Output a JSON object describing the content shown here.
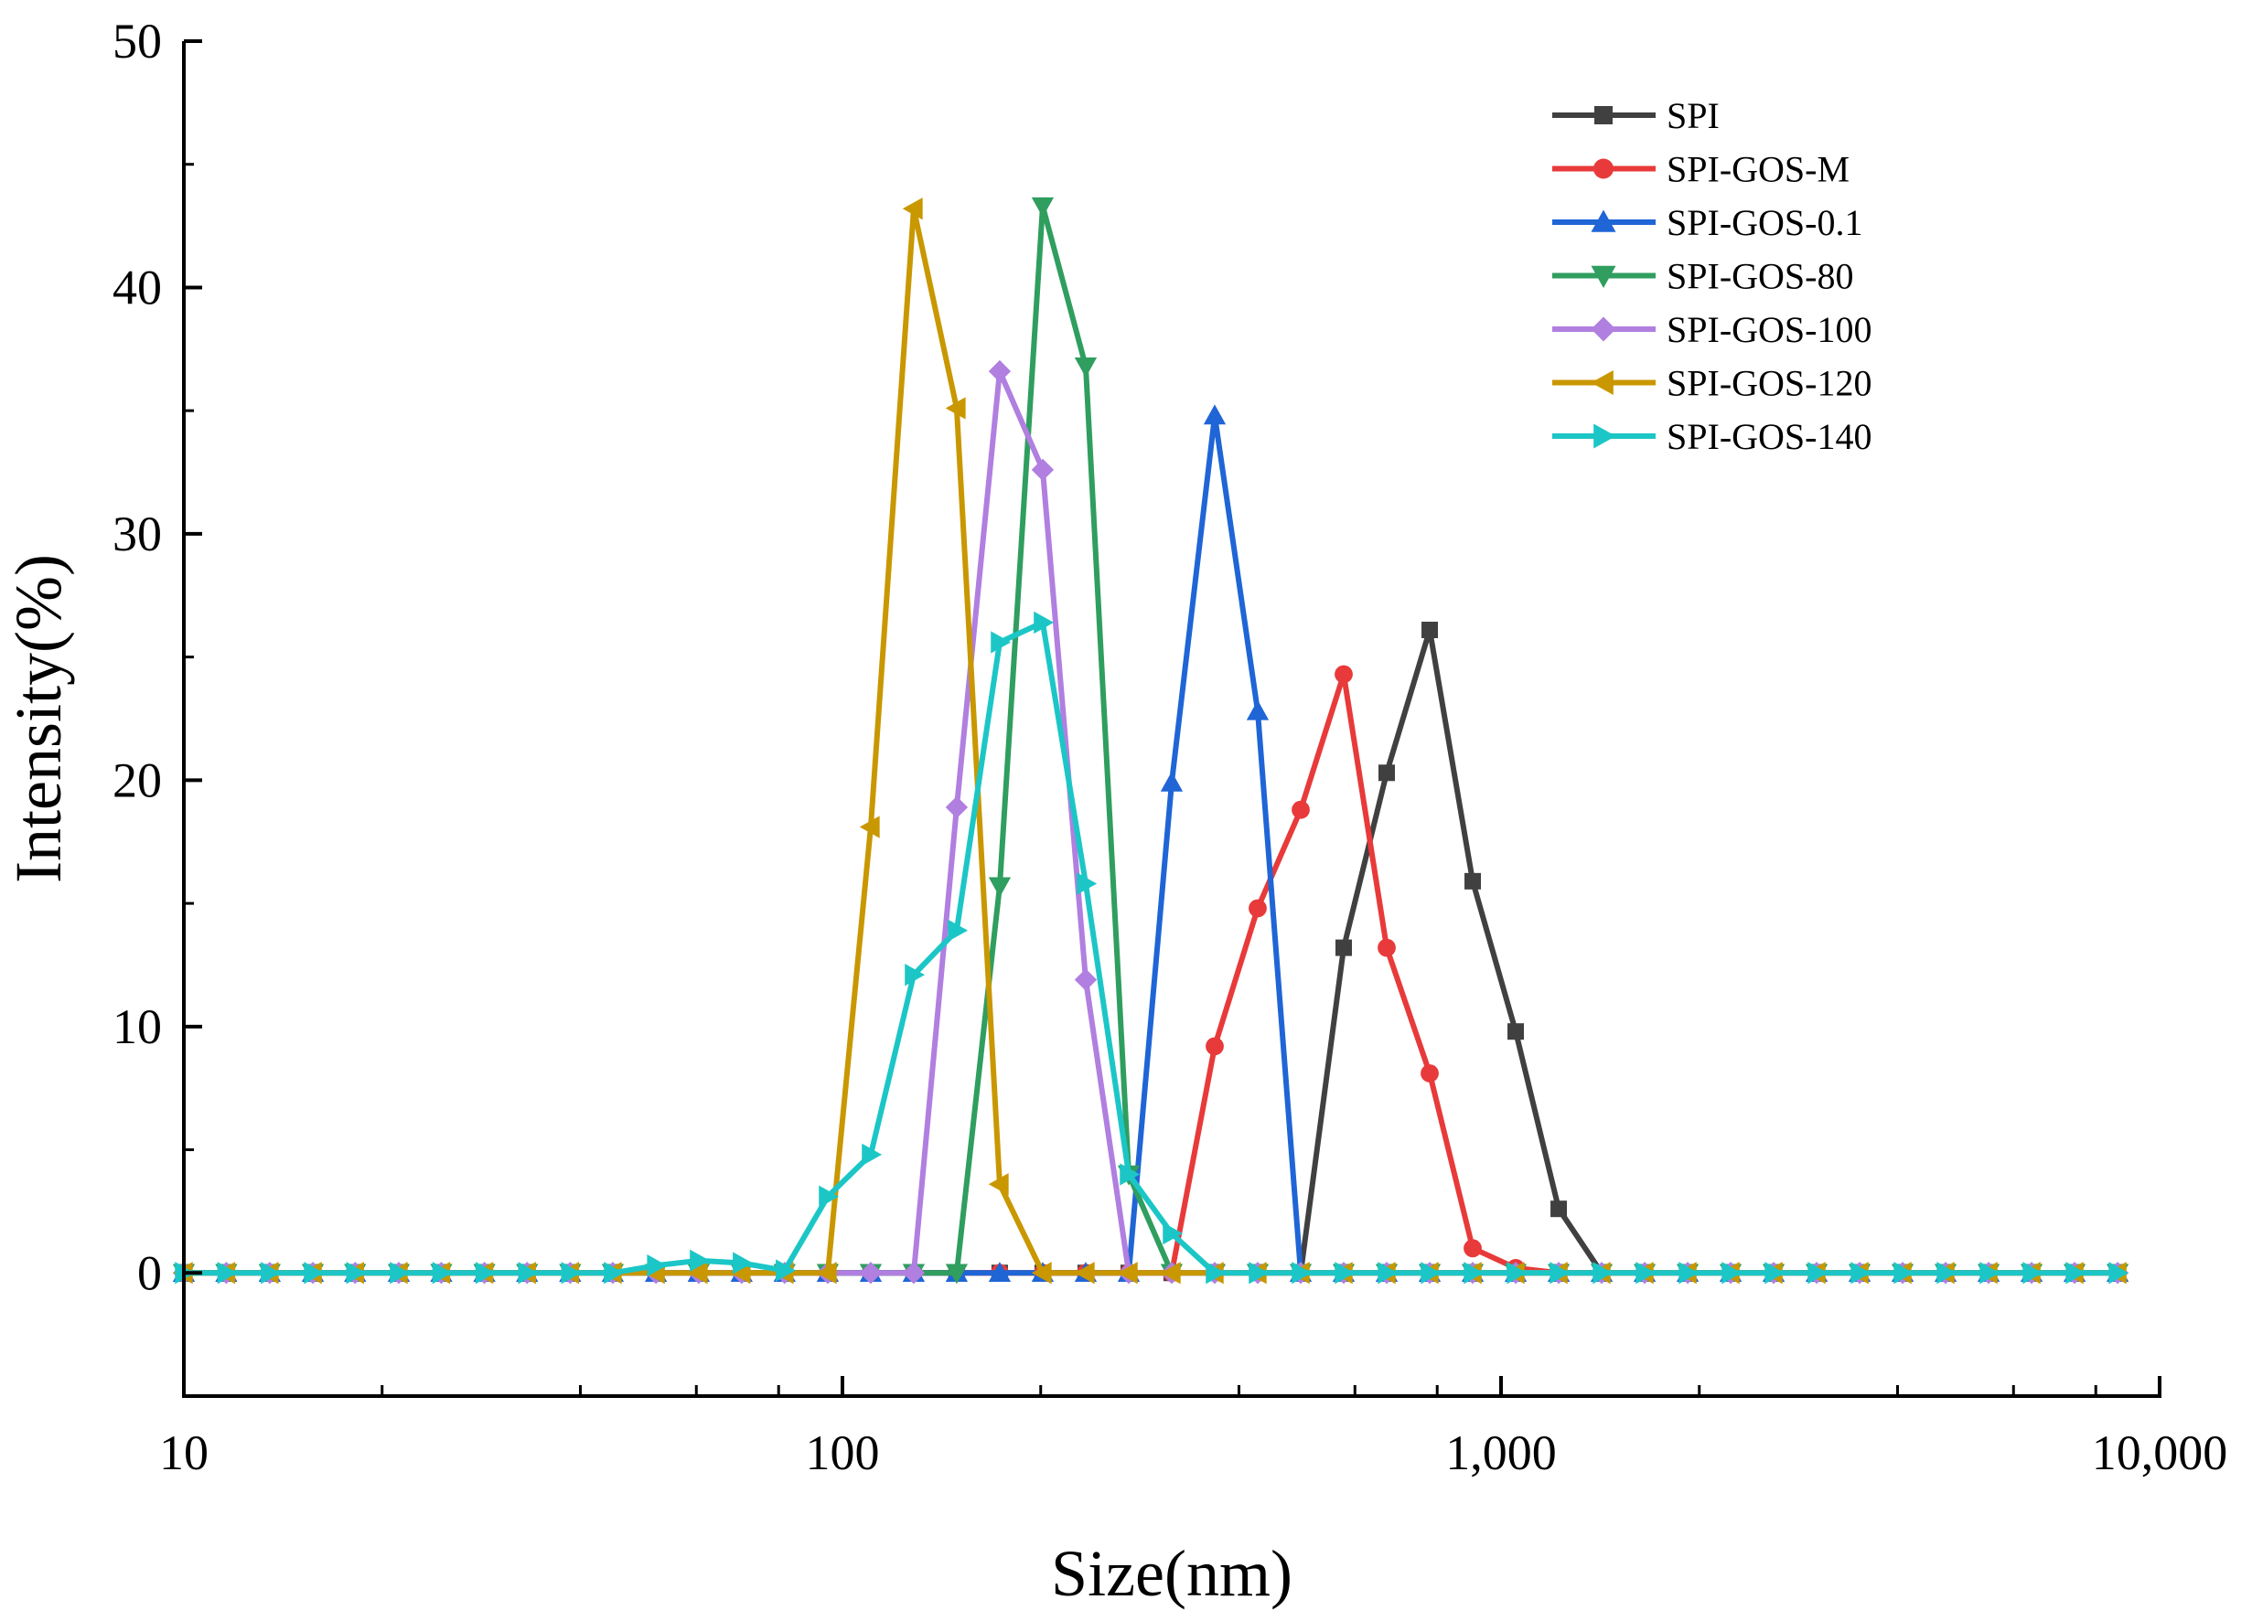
{
  "chart_data": {
    "type": "line",
    "title": "",
    "xlabel": "Size(nm)",
    "ylabel": "Intensity(%)",
    "x_scale": "log",
    "xlim": [
      10,
      10000
    ],
    "ylim": [
      -5,
      50
    ],
    "x_ticks": [
      10,
      100,
      1000,
      10000
    ],
    "x_tick_labels": [
      "10",
      "100",
      "1,000",
      "10,000"
    ],
    "y_ticks": [
      0,
      10,
      20,
      30,
      40,
      50
    ],
    "y_tick_labels": [
      "0",
      "10",
      "20",
      "30",
      "40",
      "50"
    ],
    "legend_position": "top-right",
    "x": [
      10,
      11.6,
      13.5,
      15.7,
      18.2,
      21.2,
      24.6,
      28.6,
      33.2,
      38.6,
      44.8,
      52.1,
      60.5,
      70.3,
      81.7,
      95,
      110.4,
      128.3,
      149.1,
      173.3,
      201.4,
      234.1,
      272.1,
      316.2,
      367.5,
      427.1,
      496.4,
      576.9,
      670.5,
      779.3,
      905.7,
      1052.6,
      1223.4,
      1421.8,
      1652.4,
      1920.4,
      2231.9,
      2593.9,
      3014.6,
      3503.6,
      4071.9,
      4732.4,
      5500,
      6392.1,
      7429,
      8633.9
    ],
    "series": [
      {
        "name": "SPI",
        "color": "#404040",
        "marker": "square",
        "values": [
          0,
          0,
          0,
          0,
          0,
          0,
          0,
          0,
          0,
          0,
          0,
          0,
          0,
          0,
          0,
          0,
          0,
          0,
          0,
          0,
          0,
          0,
          0,
          0,
          0,
          0,
          0,
          13.2,
          20.3,
          26.1,
          15.9,
          9.8,
          2.6,
          0,
          0,
          0,
          0,
          0,
          0,
          0,
          0,
          0,
          0,
          0,
          0,
          0
        ]
      },
      {
        "name": "SPI-GOS-M",
        "color": "#e83a3a",
        "marker": "circle",
        "values": [
          0,
          0,
          0,
          0,
          0,
          0,
          0,
          0,
          0,
          0,
          0,
          0,
          0,
          0,
          0,
          0,
          0,
          0,
          0,
          0,
          0,
          0,
          0,
          0,
          9.2,
          14.8,
          18.8,
          24.3,
          13.2,
          8.1,
          1.0,
          0.2,
          0,
          0,
          0,
          0,
          0,
          0,
          0,
          0,
          0,
          0,
          0,
          0,
          0,
          0
        ]
      },
      {
        "name": "SPI-GOS-0.1",
        "color": "#1f65d6",
        "marker": "triangle-up",
        "values": [
          0,
          0,
          0,
          0,
          0,
          0,
          0,
          0,
          0,
          0,
          0,
          0,
          0,
          0,
          0,
          0,
          0,
          0,
          0,
          0,
          0,
          0,
          0,
          19.9,
          34.8,
          22.8,
          0,
          0,
          0,
          0,
          0,
          0,
          0,
          0,
          0,
          0,
          0,
          0,
          0,
          0,
          0,
          0,
          0,
          0,
          0,
          0
        ]
      },
      {
        "name": "SPI-GOS-80",
        "color": "#2f9e5f",
        "marker": "triangle-down",
        "values": [
          0,
          0,
          0,
          0,
          0,
          0,
          0,
          0,
          0,
          0,
          0,
          0,
          0,
          0,
          0,
          0,
          0,
          0,
          0,
          15.7,
          43.3,
          36.8,
          4.0,
          0,
          0,
          0,
          0,
          0,
          0,
          0,
          0,
          0,
          0,
          0,
          0,
          0,
          0,
          0,
          0,
          0,
          0,
          0,
          0,
          0,
          0,
          0
        ]
      },
      {
        "name": "SPI-GOS-100",
        "color": "#b07fe0",
        "marker": "diamond",
        "values": [
          0,
          0,
          0,
          0,
          0,
          0,
          0,
          0,
          0,
          0,
          0,
          0,
          0,
          0,
          0,
          0,
          0,
          0,
          18.9,
          36.6,
          32.6,
          11.9,
          0,
          0,
          0,
          0,
          0,
          0,
          0,
          0,
          0,
          0,
          0,
          0,
          0,
          0,
          0,
          0,
          0,
          0,
          0,
          0,
          0,
          0,
          0,
          0
        ]
      },
      {
        "name": "SPI-GOS-120",
        "color": "#c99700",
        "marker": "triangle-left",
        "values": [
          0,
          0,
          0,
          0,
          0,
          0,
          0,
          0,
          0,
          0,
          0,
          0,
          0,
          0,
          0,
          0,
          18.1,
          43.2,
          35.1,
          3.6,
          0,
          0,
          0,
          0,
          0,
          0,
          0,
          0,
          0,
          0,
          0,
          0,
          0,
          0,
          0,
          0,
          0,
          0,
          0,
          0,
          0,
          0,
          0,
          0,
          0,
          0
        ]
      },
      {
        "name": "SPI-GOS-140",
        "color": "#1cc6c6",
        "marker": "triangle-right",
        "values": [
          0,
          0,
          0,
          0,
          0,
          0,
          0,
          0,
          0,
          0,
          0,
          0.3,
          0.5,
          0.4,
          0.1,
          3.1,
          4.8,
          12.1,
          13.9,
          25.6,
          26.4,
          15.8,
          4.0,
          1.6,
          0,
          0,
          0,
          0,
          0,
          0,
          0,
          0,
          0,
          0,
          0,
          0,
          0,
          0,
          0,
          0,
          0,
          0,
          0,
          0,
          0,
          0
        ]
      }
    ]
  }
}
